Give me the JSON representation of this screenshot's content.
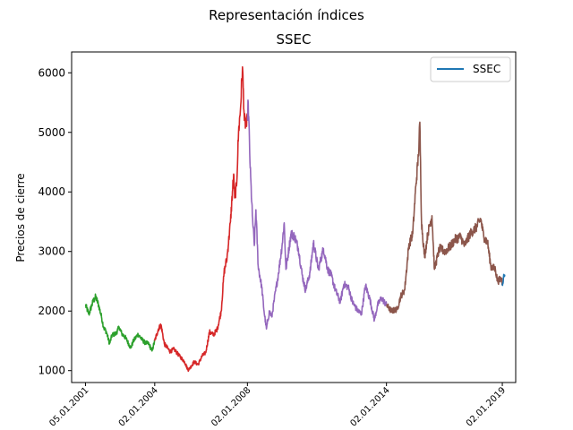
{
  "figure": {
    "suptitle": "Representación índices"
  },
  "chart_data": {
    "type": "line",
    "title": "SSEC",
    "xlabel": "",
    "ylabel": "Precios de cierre",
    "xlim": [
      "2000-06-01",
      "2019-08-01"
    ],
    "ylim": [
      800,
      6350
    ],
    "yticks": [
      1000,
      2000,
      3000,
      4000,
      5000,
      6000
    ],
    "xticks": [
      {
        "date": "2001-01-05",
        "label": "05.01.2001"
      },
      {
        "date": "2004-01-02",
        "label": "02.01.2004"
      },
      {
        "date": "2008-01-02",
        "label": "02.01.2008"
      },
      {
        "date": "2014-01-02",
        "label": "02.01.2014"
      },
      {
        "date": "2019-01-02",
        "label": "02.01.2019"
      }
    ],
    "grid": false,
    "legend": {
      "position": "top-right",
      "entries": [
        {
          "name": "SSEC",
          "color": "#1f77b4"
        }
      ]
    },
    "segments": [
      {
        "color": "#2ca02c",
        "points": [
          [
            "2001-01-05",
            2100
          ],
          [
            "2001-03-01",
            1950
          ],
          [
            "2001-05-01",
            2150
          ],
          [
            "2001-06-15",
            2240
          ],
          [
            "2001-08-01",
            2100
          ],
          [
            "2001-09-15",
            1900
          ],
          [
            "2001-10-20",
            1720
          ],
          [
            "2001-12-01",
            1650
          ],
          [
            "2002-01-20",
            1450
          ],
          [
            "2002-03-01",
            1600
          ],
          [
            "2002-05-01",
            1620
          ],
          [
            "2002-06-20",
            1730
          ],
          [
            "2002-08-01",
            1620
          ],
          [
            "2002-10-01",
            1550
          ],
          [
            "2002-12-20",
            1380
          ],
          [
            "2003-02-01",
            1500
          ],
          [
            "2003-04-15",
            1610
          ],
          [
            "2003-06-15",
            1520
          ],
          [
            "2003-08-01",
            1470
          ],
          [
            "2003-10-01",
            1450
          ],
          [
            "2003-11-20",
            1330
          ],
          [
            "2004-01-02",
            1500
          ]
        ]
      },
      {
        "color": "#d62728",
        "points": [
          [
            "2004-01-02",
            1500
          ],
          [
            "2004-03-01",
            1700
          ],
          [
            "2004-04-10",
            1770
          ],
          [
            "2004-06-01",
            1450
          ],
          [
            "2004-09-01",
            1320
          ],
          [
            "2004-11-01",
            1360
          ],
          [
            "2005-01-15",
            1260
          ],
          [
            "2005-04-15",
            1150
          ],
          [
            "2005-06-10",
            1010
          ],
          [
            "2005-07-15",
            1050
          ],
          [
            "2005-09-15",
            1150
          ],
          [
            "2005-11-15",
            1100
          ],
          [
            "2006-01-20",
            1250
          ],
          [
            "2006-03-15",
            1300
          ],
          [
            "2006-05-15",
            1650
          ],
          [
            "2006-07-15",
            1600
          ],
          [
            "2006-09-15",
            1700
          ],
          [
            "2006-11-15",
            2000
          ],
          [
            "2006-12-30",
            2650
          ],
          [
            "2007-02-15",
            2900
          ],
          [
            "2007-04-10",
            3500
          ],
          [
            "2007-05-30",
            4300
          ],
          [
            "2007-06-15",
            3900
          ],
          [
            "2007-07-15",
            4100
          ],
          [
            "2007-08-15",
            5000
          ],
          [
            "2007-09-15",
            5400
          ],
          [
            "2007-10-16",
            6100
          ],
          [
            "2007-11-15",
            5200
          ],
          [
            "2007-12-20",
            5100
          ],
          [
            "2008-01-02",
            5250
          ]
        ]
      },
      {
        "color": "#9467bd",
        "points": [
          [
            "2008-01-02",
            5250
          ],
          [
            "2008-01-15",
            5500
          ],
          [
            "2008-02-15",
            4400
          ],
          [
            "2008-03-20",
            3600
          ],
          [
            "2008-04-20",
            3100
          ],
          [
            "2008-05-15",
            3700
          ],
          [
            "2008-06-20",
            2750
          ],
          [
            "2008-08-15",
            2400
          ],
          [
            "2008-09-20",
            2000
          ],
          [
            "2008-10-28",
            1700
          ],
          [
            "2008-12-15",
            2000
          ],
          [
            "2009-01-20",
            1900
          ],
          [
            "2009-03-01",
            2200
          ],
          [
            "2009-05-01",
            2600
          ],
          [
            "2009-07-01",
            3100
          ],
          [
            "2009-08-04",
            3480
          ],
          [
            "2009-08-31",
            2700
          ],
          [
            "2009-11-20",
            3300
          ],
          [
            "2010-01-15",
            3250
          ],
          [
            "2010-03-15",
            3050
          ],
          [
            "2010-05-15",
            2600
          ],
          [
            "2010-07-05",
            2350
          ],
          [
            "2010-09-15",
            2650
          ],
          [
            "2010-11-08",
            3150
          ],
          [
            "2011-01-25",
            2700
          ],
          [
            "2011-04-15",
            3050
          ],
          [
            "2011-06-20",
            2700
          ],
          [
            "2011-08-15",
            2600
          ],
          [
            "2011-10-20",
            2350
          ],
          [
            "2012-01-05",
            2150
          ],
          [
            "2012-03-01",
            2450
          ],
          [
            "2012-05-10",
            2400
          ],
          [
            "2012-07-15",
            2150
          ],
          [
            "2012-09-25",
            2020
          ],
          [
            "2012-12-03",
            1950
          ],
          [
            "2013-02-05",
            2430
          ],
          [
            "2013-04-15",
            2200
          ],
          [
            "2013-06-25",
            1850
          ],
          [
            "2013-08-15",
            2100
          ],
          [
            "2013-10-15",
            2220
          ],
          [
            "2014-01-02",
            2100
          ]
        ]
      },
      {
        "color": "#8c564b",
        "points": [
          [
            "2014-01-02",
            2100
          ],
          [
            "2014-03-20",
            2000
          ],
          [
            "2014-06-20",
            2030
          ],
          [
            "2014-08-15",
            2250
          ],
          [
            "2014-10-15",
            2350
          ],
          [
            "2014-12-20",
            3100
          ],
          [
            "2015-02-20",
            3300
          ],
          [
            "2015-04-10",
            4100
          ],
          [
            "2015-05-20",
            4600
          ],
          [
            "2015-06-12",
            5170
          ],
          [
            "2015-07-08",
            3500
          ],
          [
            "2015-08-26",
            2900
          ],
          [
            "2015-10-15",
            3300
          ],
          [
            "2015-12-20",
            3600
          ],
          [
            "2016-01-28",
            2700
          ],
          [
            "2016-04-15",
            3050
          ],
          [
            "2016-07-15",
            3000
          ],
          [
            "2016-10-15",
            3100
          ],
          [
            "2016-12-15",
            3200
          ],
          [
            "2017-03-15",
            3250
          ],
          [
            "2017-05-15",
            3100
          ],
          [
            "2017-08-15",
            3300
          ],
          [
            "2017-11-15",
            3400
          ],
          [
            "2018-01-26",
            3550
          ],
          [
            "2018-03-15",
            3250
          ],
          [
            "2018-05-15",
            3150
          ],
          [
            "2018-07-05",
            2750
          ],
          [
            "2018-09-15",
            2700
          ],
          [
            "2018-10-19",
            2500
          ],
          [
            "2018-12-20",
            2550
          ],
          [
            "2019-01-02",
            2460
          ]
        ]
      },
      {
        "color": "#1f77b4",
        "points": [
          [
            "2019-01-02",
            2460
          ],
          [
            "2019-01-20",
            2560
          ],
          [
            "2019-02-10",
            2610
          ]
        ]
      }
    ]
  }
}
